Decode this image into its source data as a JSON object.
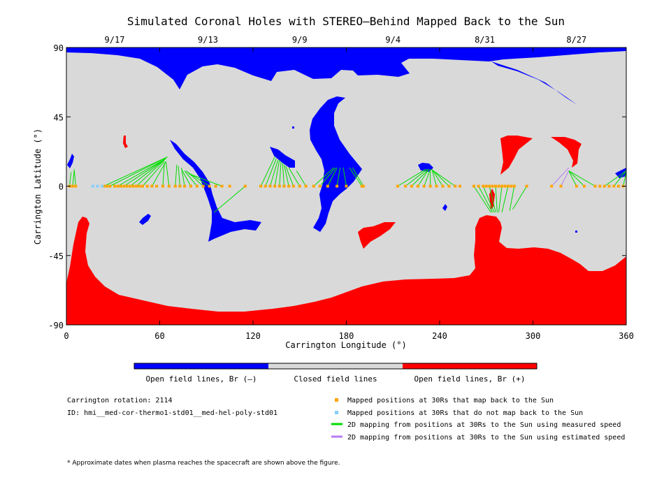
{
  "chart_data": {
    "type": "map",
    "title": "Simulated Coronal Holes with STEREO–Behind Mapped Back to the Sun",
    "xlabel": "Carrington Longitude (°)",
    "ylabel": "Carrington Latitude (°)",
    "xlim": [
      0,
      360
    ],
    "ylim": [
      -90,
      90
    ],
    "x_ticks": [
      0,
      60,
      120,
      180,
      240,
      300,
      360
    ],
    "y_ticks": [
      90,
      45,
      0,
      -45,
      -90
    ],
    "date_ticks": [
      {
        "lon": 31,
        "label": "9/17"
      },
      {
        "lon": 91,
        "label": "9/13"
      },
      {
        "lon": 150,
        "label": "9/9"
      },
      {
        "lon": 210,
        "label": "9/4"
      },
      {
        "lon": 269,
        "label": "8/31"
      },
      {
        "lon": 328,
        "label": "8/27"
      }
    ],
    "colors": {
      "open_negative": "#0000ff",
      "closed": "#d9d9d9",
      "open_positive": "#ff0000",
      "mapped": "#ffa500",
      "unmapped": "#87cefa",
      "measured_speed": "#00dd00",
      "estimated_speed": "#b77cf0"
    },
    "colorbar_labels": [
      "Open field lines, Br (–)",
      "Closed field lines",
      "Open field lines, Br (+)"
    ],
    "mapped_points": [
      [
        2,
        0
      ],
      [
        4,
        0
      ],
      [
        6,
        0
      ],
      [
        24,
        0
      ],
      [
        26,
        0
      ],
      [
        28,
        0
      ],
      [
        31,
        0
      ],
      [
        33,
        0
      ],
      [
        35,
        0
      ],
      [
        37,
        0
      ],
      [
        39,
        0
      ],
      [
        41,
        0
      ],
      [
        43,
        0
      ],
      [
        45,
        0
      ],
      [
        47,
        0
      ],
      [
        49,
        0
      ],
      [
        52,
        0
      ],
      [
        55,
        0
      ],
      [
        58,
        0
      ],
      [
        62,
        0
      ],
      [
        66,
        0
      ],
      [
        70,
        0
      ],
      [
        73,
        0
      ],
      [
        76,
        0
      ],
      [
        80,
        0
      ],
      [
        84,
        0
      ],
      [
        88,
        0
      ],
      [
        92,
        0
      ],
      [
        96,
        0
      ],
      [
        100,
        0
      ],
      [
        105,
        0
      ],
      [
        115,
        0
      ],
      [
        125,
        0
      ],
      [
        128,
        0
      ],
      [
        131,
        0
      ],
      [
        134,
        0
      ],
      [
        137,
        0
      ],
      [
        140,
        0
      ],
      [
        143,
        0
      ],
      [
        146,
        0
      ],
      [
        150,
        0
      ],
      [
        154,
        0
      ],
      [
        159,
        0
      ],
      [
        163,
        0
      ],
      [
        168,
        0
      ],
      [
        174,
        0
      ],
      [
        180,
        0
      ],
      [
        190,
        0
      ],
      [
        191,
        0
      ],
      [
        213,
        0
      ],
      [
        218,
        0
      ],
      [
        222,
        0
      ],
      [
        226,
        0
      ],
      [
        230,
        0
      ],
      [
        234,
        0
      ],
      [
        238,
        0
      ],
      [
        242,
        0
      ],
      [
        246,
        0
      ],
      [
        250,
        0
      ],
      [
        253,
        0
      ],
      [
        262,
        0
      ],
      [
        265,
        0
      ],
      [
        268,
        0
      ],
      [
        270,
        0
      ],
      [
        272,
        0
      ],
      [
        274,
        0
      ],
      [
        276,
        0
      ],
      [
        278,
        0
      ],
      [
        280,
        0
      ],
      [
        282,
        0
      ],
      [
        284,
        0
      ],
      [
        286,
        0
      ],
      [
        288,
        0
      ],
      [
        296,
        0
      ],
      [
        312,
        0
      ],
      [
        318,
        0
      ],
      [
        328,
        0
      ],
      [
        333,
        0
      ],
      [
        340,
        0
      ],
      [
        343,
        0
      ],
      [
        346,
        0
      ],
      [
        349,
        0
      ],
      [
        352,
        0
      ],
      [
        355,
        0
      ],
      [
        358,
        0
      ]
    ],
    "unmapped_points": [
      [
        17,
        0
      ],
      [
        20,
        0
      ],
      [
        23,
        0
      ]
    ],
    "measured_links": [
      [
        [
          2,
          0
        ],
        [
          3,
          9
        ]
      ],
      [
        [
          4,
          0
        ],
        [
          5,
          10
        ]
      ],
      [
        [
          6,
          0
        ],
        [
          5,
          11
        ]
      ],
      [
        [
          24,
          0
        ],
        [
          65,
          19
        ]
      ],
      [
        [
          28,
          0
        ],
        [
          65,
          19
        ]
      ],
      [
        [
          33,
          0
        ],
        [
          64,
          18
        ]
      ],
      [
        [
          37,
          0
        ],
        [
          64,
          18
        ]
      ],
      [
        [
          41,
          0
        ],
        [
          64,
          18
        ]
      ],
      [
        [
          45,
          0
        ],
        [
          63,
          17
        ]
      ],
      [
        [
          49,
          0
        ],
        [
          63,
          16
        ]
      ],
      [
        [
          55,
          0
        ],
        [
          64,
          16
        ]
      ],
      [
        [
          62,
          0
        ],
        [
          63,
          15
        ]
      ],
      [
        [
          66,
          0
        ],
        [
          64,
          16
        ]
      ],
      [
        [
          70,
          0
        ],
        [
          71,
          14
        ]
      ],
      [
        [
          73,
          0
        ],
        [
          72,
          13
        ]
      ],
      [
        [
          76,
          0
        ],
        [
          74,
          12
        ]
      ],
      [
        [
          80,
          0
        ],
        [
          74,
          11
        ]
      ],
      [
        [
          84,
          0
        ],
        [
          76,
          10
        ]
      ],
      [
        [
          88,
          0
        ],
        [
          77,
          10
        ]
      ],
      [
        [
          92,
          0
        ],
        [
          78,
          9
        ]
      ],
      [
        [
          100,
          0
        ],
        [
          79,
          8
        ]
      ],
      [
        [
          115,
          0
        ],
        [
          95,
          -17
        ]
      ],
      [
        [
          125,
          0
        ],
        [
          134,
          19
        ]
      ],
      [
        [
          128,
          0
        ],
        [
          135,
          18
        ]
      ],
      [
        [
          131,
          0
        ],
        [
          136,
          17
        ]
      ],
      [
        [
          134,
          0
        ],
        [
          137,
          17
        ]
      ],
      [
        [
          137,
          0
        ],
        [
          138,
          16
        ]
      ],
      [
        [
          140,
          0
        ],
        [
          139,
          15
        ]
      ],
      [
        [
          143,
          0
        ],
        [
          140,
          14
        ]
      ],
      [
        [
          146,
          0
        ],
        [
          141,
          13
        ]
      ],
      [
        [
          150,
          0
        ],
        [
          143,
          12
        ]
      ],
      [
        [
          154,
          0
        ],
        [
          148,
          10
        ]
      ],
      [
        [
          159,
          0
        ],
        [
          172,
          12
        ]
      ],
      [
        [
          163,
          0
        ],
        [
          173,
          12
        ]
      ],
      [
        [
          168,
          0
        ],
        [
          174,
          12
        ]
      ],
      [
        [
          174,
          0
        ],
        [
          176,
          12
        ]
      ],
      [
        [
          180,
          0
        ],
        [
          178,
          12
        ]
      ],
      [
        [
          190,
          0
        ],
        [
          182,
          12
        ]
      ],
      [
        [
          191,
          0
        ],
        [
          184,
          12
        ]
      ],
      [
        [
          213,
          0
        ],
        [
          231,
          11
        ]
      ],
      [
        [
          218,
          0
        ],
        [
          232,
          11
        ]
      ],
      [
        [
          222,
          0
        ],
        [
          233,
          11
        ]
      ],
      [
        [
          226,
          0
        ],
        [
          233,
          11
        ]
      ],
      [
        [
          230,
          0
        ],
        [
          234,
          11
        ]
      ],
      [
        [
          234,
          0
        ],
        [
          234,
          11
        ]
      ],
      [
        [
          238,
          0
        ],
        [
          235,
          11
        ]
      ],
      [
        [
          242,
          0
        ],
        [
          235,
          11
        ]
      ],
      [
        [
          246,
          0
        ],
        [
          236,
          10
        ]
      ],
      [
        [
          250,
          0
        ],
        [
          236,
          10
        ]
      ],
      [
        [
          262,
          0
        ],
        [
          273,
          -17
        ]
      ],
      [
        [
          265,
          0
        ],
        [
          274,
          -17
        ]
      ],
      [
        [
          268,
          0
        ],
        [
          275,
          -17
        ]
      ],
      [
        [
          272,
          0
        ],
        [
          276,
          -17
        ]
      ],
      [
        [
          276,
          0
        ],
        [
          277,
          -17
        ]
      ],
      [
        [
          280,
          0
        ],
        [
          278,
          -17
        ]
      ],
      [
        [
          284,
          0
        ],
        [
          280,
          -17
        ]
      ],
      [
        [
          288,
          0
        ],
        [
          285,
          -16
        ]
      ],
      [
        [
          296,
          0
        ],
        [
          287,
          -15
        ]
      ],
      [
        [
          328,
          0
        ],
        [
          323,
          10
        ]
      ],
      [
        [
          333,
          0
        ],
        [
          323,
          10
        ]
      ],
      [
        [
          340,
          0
        ],
        [
          323,
          10
        ]
      ],
      [
        [
          346,
          0
        ],
        [
          360,
          10
        ]
      ],
      [
        [
          352,
          0
        ],
        [
          360,
          10
        ]
      ],
      [
        [
          358,
          0
        ],
        [
          360,
          9
        ]
      ]
    ],
    "estimated_links": [
      [
        [
          318,
          0
        ],
        [
          323,
          10
        ]
      ],
      [
        [
          312,
          0
        ],
        [
          323,
          12
        ]
      ]
    ]
  },
  "colorbar_label_open_neg": "Open field lines, Br (–)",
  "colorbar_label_closed": "Closed field lines",
  "colorbar_label_open_pos": "Open field lines, Br (+)",
  "rotation_text": "Carrington rotation: 2114",
  "id_text": "ID: hmi__med-cor-thermo1-std01__med-hel-poly-std01",
  "legend": {
    "mapped": "Mapped positions at 30Rs that map back to the Sun",
    "unmapped": "Mapped positions at 30Rs that do not map back to the Sun",
    "measured": "2D mapping from positions at 30Rs to the Sun using measured speed",
    "estimated": "2D mapping from positions at 30Rs to the Sun using estimated speed"
  },
  "footnote": "* Approximate dates when plasma reaches the spacecraft are shown above the figure."
}
